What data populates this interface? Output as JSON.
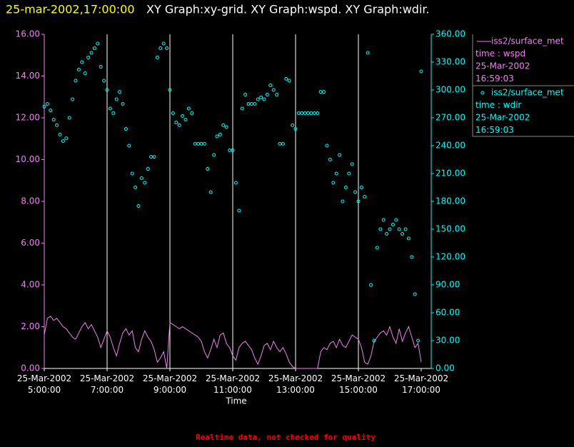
{
  "chart_data": {
    "type": "line",
    "timestamp": "25-mar-2002,17:00:00",
    "title": "XY Graph:xy-grid.  XY Graph:wspd.  XY Graph:wdir.",
    "xlabel": "Time",
    "footer": "Realtime data, not checked for quality",
    "xlim": [
      5,
      17
    ],
    "xticks": [
      {
        "value": 5,
        "label": "25-Mar-2002 5:00:00"
      },
      {
        "value": 7,
        "label": "25-Mar-2002 7:00:00"
      },
      {
        "value": 9,
        "label": "25-Mar-2002 9:00:00"
      },
      {
        "value": 11,
        "label": "25-Mar-2002 11:00:00"
      },
      {
        "value": 13,
        "label": "25-Mar-2002 13:00:00"
      },
      {
        "value": 15,
        "label": "25-Mar-2002 15:00:00"
      },
      {
        "value": 17,
        "label": "25-Mar-2002 17:00:00"
      }
    ],
    "ylim": [
      0,
      16
    ],
    "yticks": [
      {
        "value": 0,
        "label": "0.00"
      },
      {
        "value": 2,
        "label": "2.00"
      },
      {
        "value": 4,
        "label": "4.00"
      },
      {
        "value": 6,
        "label": "6.00"
      },
      {
        "value": 8,
        "label": "8.00"
      },
      {
        "value": 10,
        "label": "10.00"
      },
      {
        "value": 12,
        "label": "12.00"
      },
      {
        "value": 14,
        "label": "14.00"
      },
      {
        "value": 16,
        "label": "16.00"
      }
    ],
    "y2lim": [
      0,
      360
    ],
    "y2ticks": [
      {
        "value": 0,
        "label": "0.00"
      },
      {
        "value": 30,
        "label": "30.00"
      },
      {
        "value": 60,
        "label": "60.00"
      },
      {
        "value": 90,
        "label": "90.00"
      },
      {
        "value": 120,
        "label": "120.00"
      },
      {
        "value": 150,
        "label": "150.00"
      },
      {
        "value": 180,
        "label": "180.00"
      },
      {
        "value": 210,
        "label": "210.00"
      },
      {
        "value": 240,
        "label": "240.00"
      },
      {
        "value": 270,
        "label": "270.00"
      },
      {
        "value": 300,
        "label": "300.00"
      },
      {
        "value": 330,
        "label": "330.00"
      },
      {
        "value": 360,
        "label": "360.00"
      }
    ],
    "grid": "x",
    "x": [
      5.0,
      5.1,
      5.2,
      5.3,
      5.4,
      5.5,
      5.6,
      5.7,
      5.8,
      5.9,
      6.0,
      6.1,
      6.2,
      6.3,
      6.4,
      6.5,
      6.6,
      6.7,
      6.8,
      6.9,
      7.0,
      7.1,
      7.2,
      7.3,
      7.4,
      7.5,
      7.6,
      7.7,
      7.8,
      7.9,
      8.0,
      8.1,
      8.2,
      8.3,
      8.4,
      8.5,
      8.6,
      8.7,
      8.8,
      8.9,
      9.0,
      9.1,
      9.2,
      9.3,
      9.4,
      9.5,
      9.6,
      9.7,
      9.8,
      9.9,
      10.0,
      10.1,
      10.2,
      10.3,
      10.4,
      10.5,
      10.6,
      10.7,
      10.8,
      10.9,
      11.0,
      11.1,
      11.2,
      11.3,
      11.4,
      11.5,
      11.6,
      11.7,
      11.8,
      11.9,
      12.0,
      12.1,
      12.2,
      12.3,
      12.4,
      12.5,
      12.6,
      12.7,
      12.8,
      12.9,
      13.0,
      13.1,
      13.2,
      13.3,
      13.4,
      13.5,
      13.6,
      13.7,
      13.8,
      13.9,
      14.0,
      14.1,
      14.2,
      14.3,
      14.4,
      14.5,
      14.6,
      14.7,
      14.8,
      14.9,
      15.0,
      15.1,
      15.2,
      15.3,
      15.4,
      15.5,
      15.6,
      15.7,
      15.8,
      15.9,
      16.0,
      16.1,
      16.2,
      16.3,
      16.4,
      16.5,
      16.6,
      16.7,
      16.8,
      16.9,
      17.0
    ],
    "series": [
      {
        "name": "iss2/surface_met",
        "label": "time : wspd",
        "date": "25-Mar-2002",
        "time": "16:59:03",
        "kind": "line",
        "axis": "y",
        "color": "#ee82ee",
        "values": [
          1.6,
          2.4,
          2.5,
          2.3,
          2.4,
          2.2,
          2.0,
          1.9,
          1.7,
          1.5,
          1.4,
          1.7,
          2.0,
          2.2,
          1.9,
          2.1,
          1.8,
          1.5,
          1.0,
          1.4,
          1.8,
          1.5,
          1.0,
          0.6,
          1.2,
          1.7,
          1.9,
          1.6,
          1.8,
          1.0,
          0.8,
          1.4,
          1.8,
          1.5,
          1.3,
          0.9,
          0.3,
          0.5,
          0.8,
          0.0,
          2.2,
          2.1,
          2.0,
          1.9,
          2.0,
          1.9,
          1.8,
          1.7,
          1.6,
          1.5,
          1.3,
          0.8,
          0.5,
          0.9,
          1.4,
          1.0,
          1.6,
          1.7,
          1.2,
          1.0,
          0.6,
          0.4,
          1.0,
          1.2,
          1.3,
          1.1,
          0.9,
          0.5,
          0.2,
          0.6,
          1.1,
          1.2,
          0.9,
          1.3,
          1.0,
          0.8,
          1.0,
          0.7,
          0.3,
          0.1,
          0.0,
          0.0,
          0.0,
          0.0,
          0.0,
          0.0,
          0.0,
          0.0,
          0.8,
          1.0,
          0.9,
          1.2,
          1.3,
          1.0,
          1.4,
          1.1,
          1.0,
          1.3,
          1.6,
          1.5,
          1.4,
          1.0,
          0.3,
          0.2,
          0.6,
          1.3,
          1.5,
          1.7,
          1.8,
          1.6,
          2.0,
          1.5,
          1.2,
          1.9,
          1.3,
          1.7,
          2.0,
          1.5,
          1.0,
          1.2,
          0.3
        ]
      },
      {
        "name": "iss2/surface_met",
        "label": "time : wdir",
        "date": "25-Mar-2002",
        "time": "16:59:03",
        "kind": "scatter",
        "axis": "y2",
        "color": "#00ffff",
        "values": [
          282,
          285,
          278,
          268,
          262,
          252,
          245,
          248,
          270,
          290,
          310,
          322,
          330,
          318,
          335,
          340,
          345,
          350,
          325,
          310,
          300,
          280,
          275,
          290,
          298,
          285,
          258,
          240,
          210,
          195,
          175,
          205,
          200,
          215,
          228,
          228,
          335,
          345,
          350,
          345,
          300,
          275,
          265,
          262,
          272,
          268,
          280,
          275,
          242,
          242,
          242,
          242,
          215,
          190,
          230,
          250,
          252,
          262,
          260,
          235,
          235,
          200,
          170,
          280,
          295,
          285,
          285,
          285,
          290,
          292,
          290,
          295,
          305,
          300,
          295,
          242,
          242,
          312,
          310,
          262,
          258,
          275,
          275,
          275,
          275,
          275,
          275,
          275,
          298,
          298,
          240,
          225,
          200,
          210,
          230,
          180,
          195,
          210,
          220,
          190,
          180,
          195,
          185,
          340,
          90,
          30,
          130,
          150,
          160,
          145,
          150,
          155,
          160,
          150,
          145,
          150,
          140,
          120,
          80,
          30,
          320
        ]
      }
    ]
  }
}
